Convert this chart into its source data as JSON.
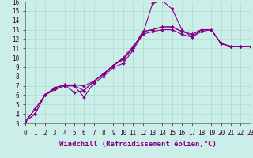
{
  "title": "",
  "xlabel": "Windchill (Refroidissement éolien,°C)",
  "background_color": "#cceee8",
  "grid_color": "#aaddcc",
  "line_color": "#880088",
  "xlim": [
    0,
    23
  ],
  "ylim": [
    3,
    16
  ],
  "xticks": [
    0,
    1,
    2,
    3,
    4,
    5,
    6,
    7,
    8,
    9,
    10,
    11,
    12,
    13,
    14,
    15,
    16,
    17,
    18,
    19,
    20,
    21,
    22,
    23
  ],
  "yticks": [
    3,
    4,
    5,
    6,
    7,
    8,
    9,
    10,
    11,
    12,
    13,
    14,
    15,
    16
  ],
  "series": [
    {
      "x": [
        0,
        1,
        2,
        3,
        4,
        5,
        6,
        7,
        8,
        9,
        10,
        11,
        12,
        13,
        14,
        15,
        16,
        17,
        18,
        19,
        20,
        21,
        22,
        23
      ],
      "y": [
        3.2,
        4.0,
        6.0,
        6.6,
        7.0,
        7.0,
        5.8,
        7.3,
        8.0,
        9.0,
        9.4,
        10.8,
        12.5,
        15.8,
        16.1,
        15.2,
        13.0,
        12.2,
        13.0,
        13.0,
        11.5,
        11.2,
        11.2,
        11.2
      ]
    },
    {
      "x": [
        0,
        1,
        2,
        3,
        4,
        5,
        6,
        7,
        8,
        9,
        10,
        11,
        12,
        13,
        14,
        15,
        16,
        17,
        18,
        19,
        20,
        21,
        22,
        23
      ],
      "y": [
        3.2,
        4.0,
        6.0,
        6.6,
        7.0,
        7.0,
        6.5,
        7.5,
        8.3,
        9.2,
        9.8,
        11.0,
        12.8,
        13.0,
        13.3,
        13.3,
        12.8,
        12.5,
        13.0,
        13.0,
        11.5,
        11.2,
        11.2,
        11.2
      ]
    },
    {
      "x": [
        0,
        1,
        2,
        3,
        4,
        5,
        6,
        7,
        8,
        9,
        10,
        11,
        12,
        13,
        14,
        15,
        16,
        17,
        18,
        19,
        20,
        21,
        22,
        23
      ],
      "y": [
        3.2,
        4.5,
        6.0,
        6.8,
        7.1,
        7.1,
        7.0,
        7.5,
        8.3,
        9.2,
        9.9,
        11.0,
        12.8,
        13.0,
        13.3,
        13.3,
        12.8,
        12.5,
        13.0,
        13.0,
        11.5,
        11.2,
        11.2,
        11.2
      ]
    },
    {
      "x": [
        0,
        1,
        2,
        3,
        4,
        5,
        6,
        7,
        8,
        9,
        10,
        11,
        12,
        13,
        14,
        15,
        16,
        17,
        18,
        19,
        20,
        21,
        22,
        23
      ],
      "y": [
        3.2,
        4.5,
        6.0,
        6.8,
        7.1,
        6.3,
        6.5,
        7.5,
        8.2,
        9.2,
        10.0,
        11.2,
        12.5,
        12.8,
        13.0,
        13.0,
        12.5,
        12.2,
        12.8,
        13.0,
        11.5,
        11.2,
        11.2,
        11.2
      ]
    }
  ],
  "marker": "D",
  "markersize": 2.0,
  "linewidth": 0.8,
  "tick_fontsize": 5.5,
  "xlabel_fontsize": 6.5
}
